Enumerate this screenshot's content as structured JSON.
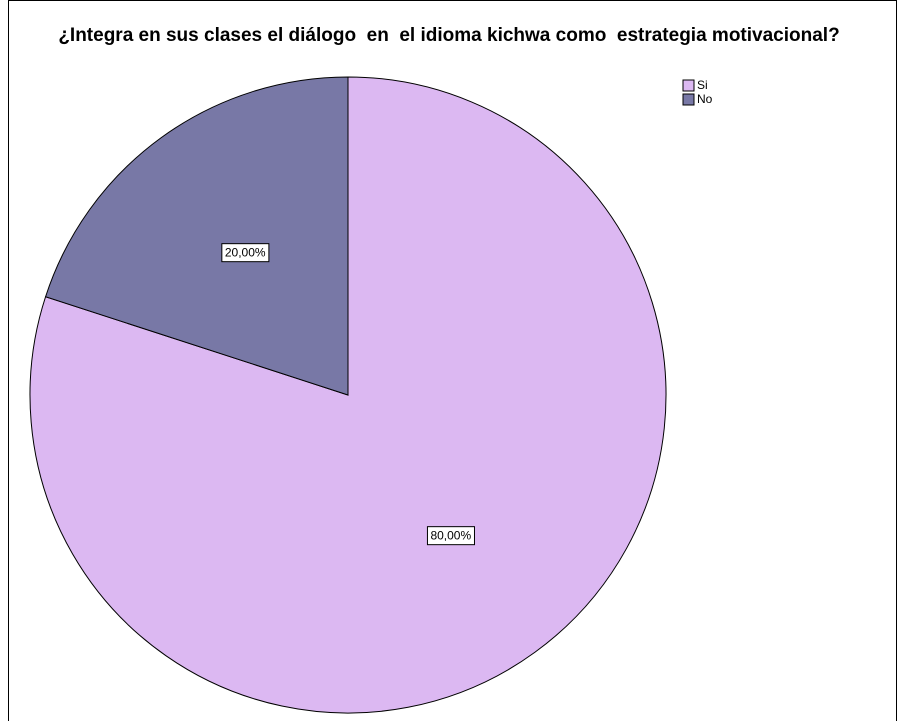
{
  "chart_data": {
    "type": "pie",
    "title": "¿Integra en sus clases el diálogo  en  el idioma kichwa como  estrategia motivacional?",
    "categories": [
      "Si",
      "No"
    ],
    "values": [
      80,
      20
    ],
    "value_labels": [
      "80,00%",
      "20,00%"
    ],
    "colors": [
      "#dcb8f2",
      "#7878a6"
    ],
    "legend": "top-right"
  }
}
